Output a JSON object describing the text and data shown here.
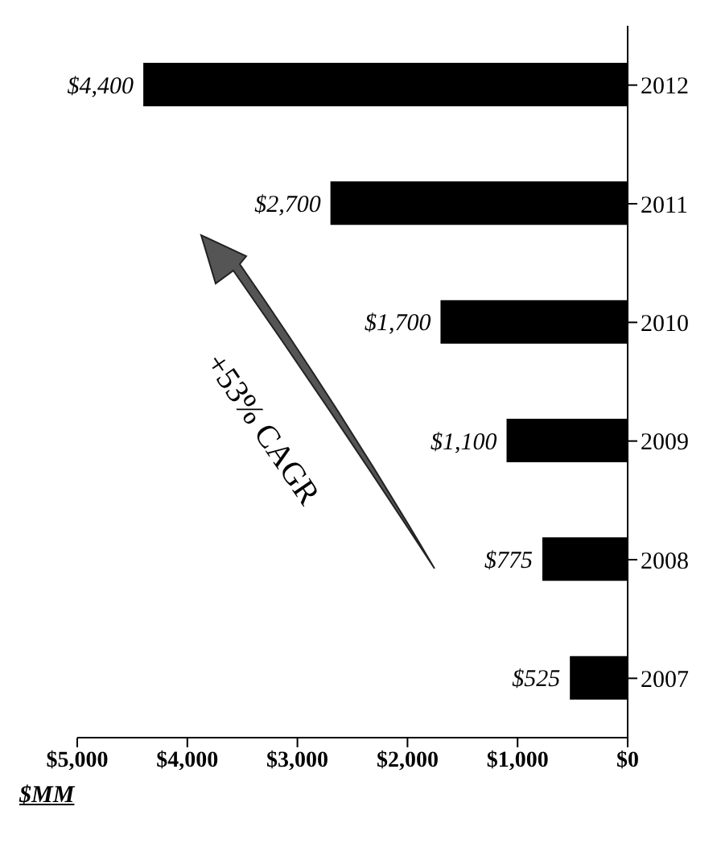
{
  "chart_data": {
    "type": "bar",
    "orientation": "horizontal",
    "xlabel": "$MM",
    "categories": [
      "2012",
      "2011",
      "2010",
      "2009",
      "2008",
      "2007"
    ],
    "values": [
      4400,
      2700,
      1700,
      1100,
      775,
      525
    ],
    "value_labels": [
      "$4,400",
      "$2,700",
      "$1,700",
      "$1,100",
      "$775",
      "$525"
    ],
    "color": "#000000",
    "xlim": [
      5000,
      0
    ],
    "xticks": [
      {
        "value": 5000,
        "label": "$5,000"
      },
      {
        "value": 4000,
        "label": "$4,000"
      },
      {
        "value": 3000,
        "label": "$3,000"
      },
      {
        "value": 2000,
        "label": "$2,000"
      },
      {
        "value": 1000,
        "label": "$1,000"
      },
      {
        "value": 0,
        "label": "$0"
      }
    ],
    "annotations": [
      "+53% CAGR"
    ],
    "grid": false,
    "legend": false
  }
}
